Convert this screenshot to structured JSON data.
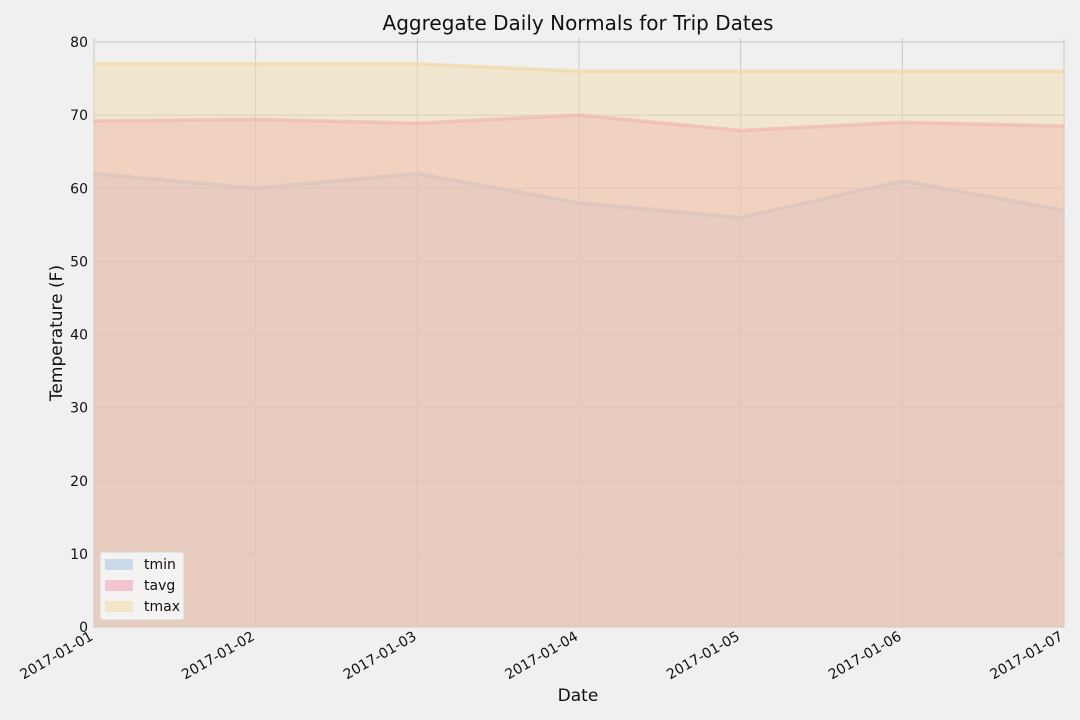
{
  "chart_data": {
    "type": "area",
    "title": "Aggregate Daily Normals for Trip Dates",
    "xlabel": "Date",
    "ylabel": "Temperature (F)",
    "categories": [
      "2017-01-01",
      "2017-01-02",
      "2017-01-03",
      "2017-01-04",
      "2017-01-05",
      "2017-01-06",
      "2017-01-07"
    ],
    "series": [
      {
        "name": "tmin",
        "values": [
          62,
          60,
          62,
          58,
          56,
          61,
          57
        ],
        "color": "#a8c4e0"
      },
      {
        "name": "tavg",
        "values": [
          69.2,
          69.4,
          68.9,
          70.0,
          67.9,
          69.0,
          68.5
        ],
        "color": "#f0a0b4"
      },
      {
        "name": "tmax",
        "values": [
          77,
          77,
          77,
          76,
          76,
          76,
          76
        ],
        "color": "#f2d9a8"
      }
    ],
    "ylim": [
      0,
      80
    ],
    "yticks": [
      0,
      10,
      20,
      30,
      40,
      50,
      60,
      70,
      80
    ],
    "stacked": false,
    "grid": true,
    "legend_position": "lower-left",
    "background": "#f0f0f0"
  }
}
